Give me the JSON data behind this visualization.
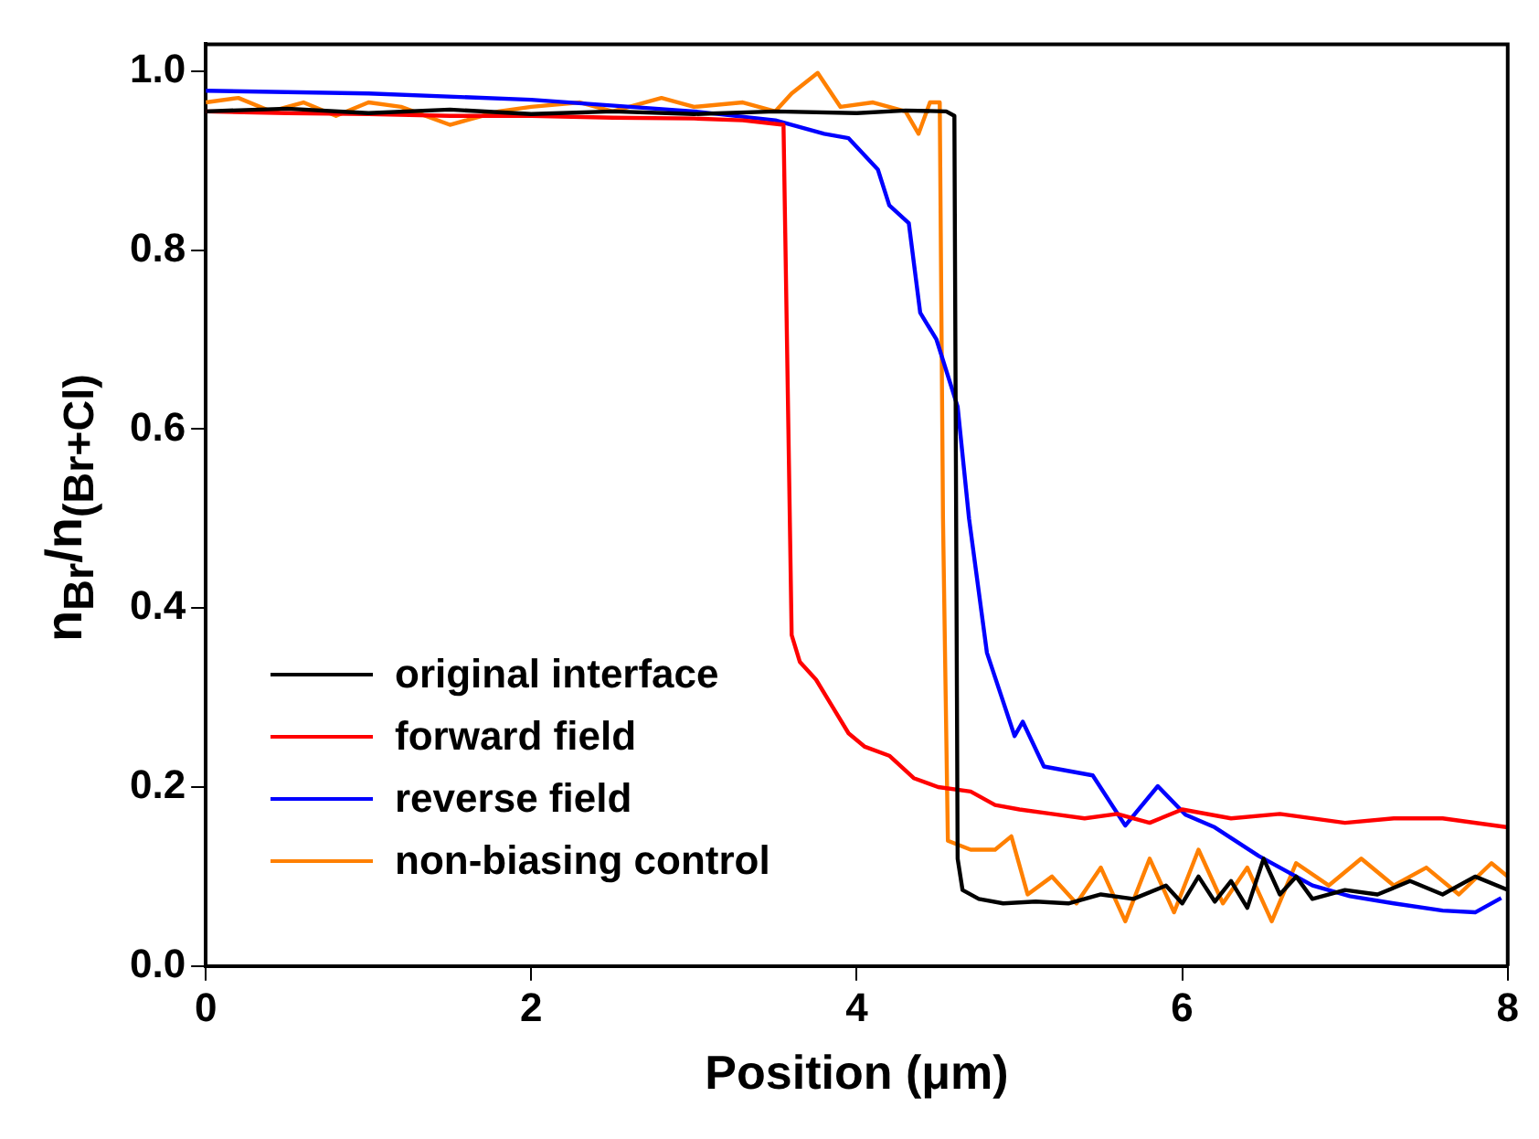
{
  "chart_data": {
    "type": "line",
    "xlabel": "Position (μm)",
    "ylabel": "n$_{Br}$/n$_{(Br+Cl)}$",
    "xlim": [
      0,
      8
    ],
    "xticks": [
      0,
      2,
      4,
      6,
      8
    ],
    "ylim": [
      0,
      1.03
    ],
    "yticks": [
      {
        "value": 0,
        "label": "0.0"
      },
      0.2,
      0.4,
      0.6,
      0.8,
      {
        "value": 1,
        "label": "1.0"
      }
    ],
    "grid": false,
    "legend": "bottom left",
    "marker": "none",
    "line_style": "solid",
    "series": [
      {
        "name": "original interface",
        "color": "#000000",
        "x": [
          0,
          0.5,
          1,
          1.5,
          2,
          2.5,
          3,
          3.5,
          4,
          4.3,
          4.55,
          4.6,
          4.62,
          4.65,
          4.75,
          4.9,
          5.1,
          5.3,
          5.5,
          5.7,
          5.9,
          6.0,
          6.1,
          6.2,
          6.3,
          6.4,
          6.5,
          6.6,
          6.7,
          6.8,
          7.0,
          7.2,
          7.4,
          7.6,
          7.8,
          8
        ],
        "values": [
          0.955,
          0.958,
          0.953,
          0.957,
          0.952,
          0.955,
          0.952,
          0.955,
          0.953,
          0.956,
          0.955,
          0.95,
          0.12,
          0.085,
          0.075,
          0.07,
          0.072,
          0.07,
          0.08,
          0.075,
          0.09,
          0.07,
          0.1,
          0.072,
          0.095,
          0.065,
          0.12,
          0.08,
          0.1,
          0.075,
          0.085,
          0.08,
          0.095,
          0.08,
          0.1,
          0.085
        ]
      },
      {
        "name": "forward field",
        "color": "#ff0000",
        "x": [
          0,
          0.5,
          1,
          1.5,
          2,
          2.5,
          3,
          3.3,
          3.55,
          3.58,
          3.6,
          3.65,
          3.75,
          3.85,
          3.95,
          4.05,
          4.2,
          4.35,
          4.5,
          4.7,
          4.85,
          5.0,
          5.2,
          5.4,
          5.6,
          5.8,
          6,
          6.3,
          6.6,
          7,
          7.3,
          7.6,
          8
        ],
        "values": [
          0.955,
          0.953,
          0.952,
          0.95,
          0.95,
          0.948,
          0.947,
          0.945,
          0.94,
          0.6,
          0.37,
          0.34,
          0.32,
          0.29,
          0.26,
          0.245,
          0.235,
          0.21,
          0.2,
          0.195,
          0.18,
          0.175,
          0.17,
          0.165,
          0.17,
          0.16,
          0.175,
          0.165,
          0.17,
          0.16,
          0.165,
          0.165,
          0.155
        ]
      },
      {
        "name": "reverse field",
        "color": "#0000ff",
        "x": [
          0,
          1,
          2,
          3,
          3.5,
          3.8,
          3.95,
          4.13,
          4.2,
          4.32,
          4.39,
          4.49,
          4.62,
          4.69,
          4.8,
          4.97,
          5.02,
          5.15,
          5.45,
          5.65,
          5.85,
          6.02,
          6.2,
          6.47,
          6.8,
          7.03,
          7.3,
          7.6,
          7.8,
          7.96
        ],
        "values": [
          0.978,
          0.975,
          0.968,
          0.955,
          0.945,
          0.93,
          0.925,
          0.89,
          0.85,
          0.83,
          0.73,
          0.7,
          0.625,
          0.5,
          0.35,
          0.257,
          0.273,
          0.223,
          0.213,
          0.157,
          0.201,
          0.169,
          0.155,
          0.123,
          0.09,
          0.078,
          0.07,
          0.062,
          0.06,
          0.076
        ]
      },
      {
        "name": "non-biasing control",
        "color": "#ff8000",
        "x": [
          0,
          0.2,
          0.4,
          0.6,
          0.8,
          1,
          1.2,
          1.5,
          1.8,
          2,
          2.3,
          2.5,
          2.8,
          3,
          3.3,
          3.5,
          3.6,
          3.76,
          3.9,
          4.1,
          4.3,
          4.38,
          4.45,
          4.51,
          4.53,
          4.56,
          4.7,
          4.85,
          4.95,
          5.05,
          5.2,
          5.35,
          5.5,
          5.65,
          5.8,
          5.95,
          6.1,
          6.25,
          6.4,
          6.55,
          6.7,
          6.9,
          7.1,
          7.3,
          7.5,
          7.7,
          7.9,
          8
        ],
        "values": [
          0.965,
          0.97,
          0.955,
          0.965,
          0.95,
          0.965,
          0.96,
          0.94,
          0.955,
          0.96,
          0.965,
          0.955,
          0.97,
          0.96,
          0.965,
          0.955,
          0.975,
          0.998,
          0.96,
          0.965,
          0.955,
          0.93,
          0.965,
          0.965,
          0.5,
          0.14,
          0.13,
          0.13,
          0.145,
          0.08,
          0.1,
          0.07,
          0.11,
          0.05,
          0.12,
          0.06,
          0.13,
          0.07,
          0.11,
          0.05,
          0.115,
          0.09,
          0.12,
          0.09,
          0.11,
          0.08,
          0.115,
          0.1
        ]
      }
    ]
  }
}
